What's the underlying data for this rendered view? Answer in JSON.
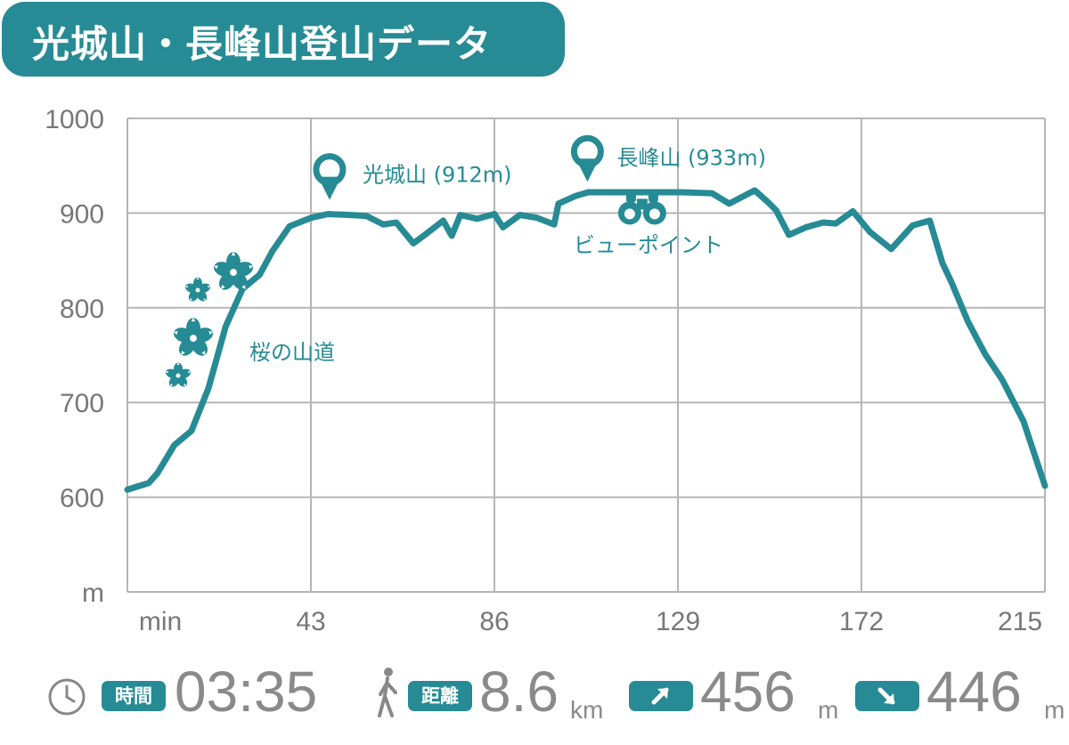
{
  "title": "光城山・長峰山登山データ",
  "colors": {
    "accent": "#268b94",
    "grid": "#b5b5b5",
    "label": "#777777",
    "stat": "#8a8a8a"
  },
  "chart_data": {
    "type": "line",
    "xlabel": "min",
    "ylabel": "m",
    "x_ticks": [
      "min",
      "43",
      "86",
      "129",
      "172",
      "215"
    ],
    "y_ticks": [
      "1000",
      "900",
      "800",
      "700",
      "600",
      "m"
    ],
    "xlim": [
      0,
      215
    ],
    "ylim": [
      500,
      1000
    ],
    "grid": true,
    "series": [
      {
        "x": [
          0,
          5,
          7,
          11,
          15,
          19,
          23,
          27,
          31,
          34,
          38,
          43,
          47,
          52,
          56,
          60,
          63,
          67,
          70,
          74,
          76,
          78,
          82,
          86,
          88,
          92,
          96,
          100,
          101,
          105,
          108,
          113,
          120,
          130,
          137,
          141,
          147,
          150,
          152,
          155,
          159,
          163,
          166,
          170,
          174,
          179,
          184,
          188,
          191,
          193,
          197,
          201,
          205,
          210,
          215
        ],
        "y": [
          608,
          615,
          625,
          655,
          670,
          715,
          780,
          820,
          835,
          860,
          886,
          895,
          899,
          898,
          897,
          888,
          890,
          868,
          878,
          892,
          876,
          898,
          894,
          899,
          885,
          898,
          895,
          888,
          910,
          918,
          922,
          922,
          922,
          922,
          921,
          910,
          924,
          912,
          903,
          877,
          885,
          890,
          889,
          902,
          880,
          862,
          887,
          892,
          847,
          828,
          785,
          751,
          724,
          680,
          612
        ]
      }
    ],
    "annotations": [
      {
        "text": "光城山 (912m)",
        "x": 48,
        "y": 912,
        "icon": "map-pin-icon"
      },
      {
        "text": "長峰山 (933m)",
        "x": 108,
        "y": 933,
        "icon": "map-pin-icon"
      },
      {
        "text": "ビューポイント",
        "x": 120,
        "y": 885,
        "icon": "binoculars-icon"
      },
      {
        "text": "桜の山道",
        "x": 30,
        "y": 756,
        "icon": "cherry-blossom-icon"
      }
    ]
  },
  "stats": {
    "time": {
      "icon": "clock-icon",
      "badge": "時間",
      "value": "03:35"
    },
    "distance": {
      "icon": "walking-person-icon",
      "badge": "距離",
      "value": "8.6",
      "unit": "km"
    },
    "ascent": {
      "icon": "arrow-up-right-icon",
      "value": "456",
      "unit": "m"
    },
    "descent": {
      "icon": "arrow-down-right-icon",
      "value": "446",
      "unit": "m"
    }
  }
}
